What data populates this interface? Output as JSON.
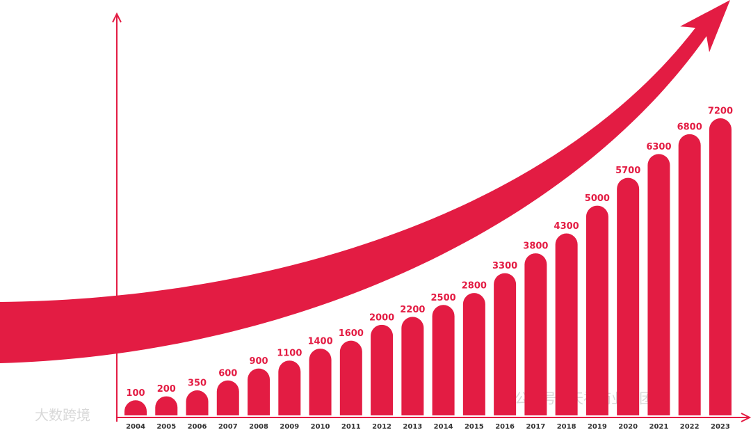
{
  "chart_data": {
    "type": "bar",
    "categories": [
      "2004",
      "2005",
      "2006",
      "2007",
      "2008",
      "2009",
      "2010",
      "2011",
      "2012",
      "2013",
      "2014",
      "2015",
      "2016",
      "2017",
      "2018",
      "2019",
      "2020",
      "2021",
      "2022",
      "2023"
    ],
    "values": [
      100,
      200,
      350,
      600,
      900,
      1100,
      1400,
      1600,
      2000,
      2200,
      2500,
      2800,
      3300,
      3800,
      4300,
      5000,
      5700,
      6300,
      6800,
      7200
    ],
    "color": "#e31c43",
    "ylim": [
      0,
      7200
    ],
    "watermarks": [
      "大数跨境",
      "公众号 · 天福商业集团"
    ]
  }
}
